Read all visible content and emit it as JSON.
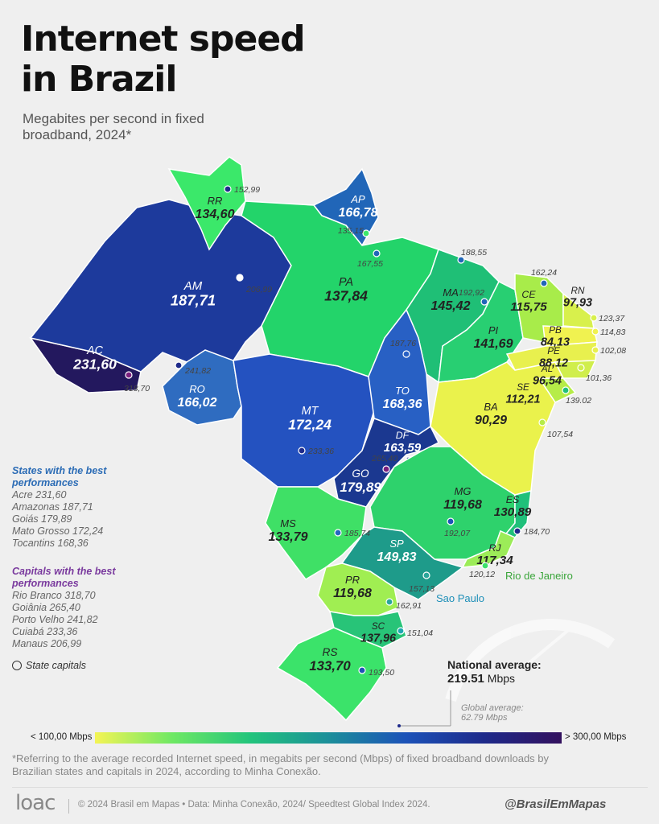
{
  "title_line1": "Internet speed",
  "title_line2": "in Brazil",
  "subtitle": "Megabites per second in fixed broadband, 2024*",
  "states": [
    {
      "abbr": "AC",
      "value": "231,60"
    },
    {
      "abbr": "AM",
      "value": "187,71"
    },
    {
      "abbr": "RR",
      "value": "134,60"
    },
    {
      "abbr": "AP",
      "value": "166,78"
    },
    {
      "abbr": "PA",
      "value": "137,84"
    },
    {
      "abbr": "MA",
      "value": "145,42"
    },
    {
      "abbr": "PI",
      "value": "141,69"
    },
    {
      "abbr": "CE",
      "value": "115,75"
    },
    {
      "abbr": "RN",
      "value": "97,93"
    },
    {
      "abbr": "PB",
      "value": "84,13"
    },
    {
      "abbr": "PE",
      "value": "88,12"
    },
    {
      "abbr": "AL",
      "value": "96,54"
    },
    {
      "abbr": "SE",
      "value": "112,21"
    },
    {
      "abbr": "BA",
      "value": "90,29"
    },
    {
      "abbr": "RO",
      "value": "166,02"
    },
    {
      "abbr": "MT",
      "value": "172,24"
    },
    {
      "abbr": "TO",
      "value": "168,36"
    },
    {
      "abbr": "DF",
      "value": "163,59"
    },
    {
      "abbr": "GO",
      "value": "179,89"
    },
    {
      "abbr": "MS",
      "value": "133,79"
    },
    {
      "abbr": "MG",
      "value": "119,68"
    },
    {
      "abbr": "ES",
      "value": "130,89"
    },
    {
      "abbr": "RJ",
      "value": "117,34"
    },
    {
      "abbr": "SP",
      "value": "149,83"
    },
    {
      "abbr": "PR",
      "value": "119,68"
    },
    {
      "abbr": "SC",
      "value": "137,96"
    },
    {
      "abbr": "RS",
      "value": "133,70"
    }
  ],
  "capitals": [
    {
      "value": "152,99"
    },
    {
      "value": "135,15"
    },
    {
      "value": "167,55"
    },
    {
      "value": "188,55"
    },
    {
      "value": "162,24"
    },
    {
      "value": "192,92"
    },
    {
      "value": "123,37"
    },
    {
      "value": "114,83"
    },
    {
      "value": "102,08"
    },
    {
      "value": "101,36"
    },
    {
      "value": "139.02"
    },
    {
      "value": "107,54"
    },
    {
      "value": "206,99"
    },
    {
      "value": "241,82"
    },
    {
      "value": "318,70"
    },
    {
      "value": "187,76"
    },
    {
      "value": "233,36"
    },
    {
      "value": "265,40"
    },
    {
      "value": "157,13"
    },
    {
      "value": "192,07"
    },
    {
      "value": "184,70"
    },
    {
      "value": "185,74"
    },
    {
      "value": "120,12"
    },
    {
      "value": "162,91"
    },
    {
      "value": "151,04"
    },
    {
      "value": "193,50"
    }
  ],
  "city_labels": {
    "rio": "Rio de Janeiro",
    "sao_paulo": "Sao Paulo"
  },
  "best_states": {
    "heading": "States with the best performances",
    "items": [
      "Acre 231,60",
      "Amazonas 187,71",
      "Goiás 179,89",
      "Mato Grosso 172,24",
      "Tocantins 168,36"
    ]
  },
  "best_capitals": {
    "heading": "Capitals with the best performances",
    "items": [
      "Rio Branco 318,70",
      "Goiânia 265,40",
      "Porto Velho 241,82",
      "Cuiabá 233,36",
      "Manaus 206,99"
    ]
  },
  "capitals_note": "State capitals",
  "national_average": {
    "label": "National average:",
    "value": "219.51",
    "unit": "Mbps"
  },
  "global_average": {
    "label": "Global average:",
    "value": "62.79 Mbps"
  },
  "legend": {
    "low": "< 100,00 Mbps",
    "high": "> 300,00 Mbps"
  },
  "footnote": "*Referring to the average recorded Internet speed, in megabits per second (Mbps) of fixed broadband downloads by Brazilian states and capitals in 2024, according to Minha Conexão.",
  "footer": {
    "logo": "loac",
    "credits": "© 2024 Brasil em Mapas • Data: Minha Conexão, 2024/ Speedtest Global Index 2024.",
    "handle": "@BrasilEmMapas"
  },
  "colors": {
    "AC": "#23185e",
    "AM": "#1d3a9c",
    "RR": "#3be86a",
    "AP": "#2166b8",
    "PA": "#23d46a",
    "MA": "#1fbf76",
    "PI": "#28cf72",
    "CE": "#a8ec4a",
    "RN": "#d8f04c",
    "PB": "#f0f250",
    "PE": "#e8f04e",
    "AL": "#d0ee4c",
    "SE": "#b6ec48",
    "BA": "#eaf24c",
    "RO": "#2f6cc0",
    "MT": "#2452c0",
    "TO": "#2860c4",
    "DF": "#1b3c9a",
    "GO": "#1b3890",
    "MS": "#3fe066",
    "MG": "#2ed26c",
    "ES": "#1fc07a",
    "RJ": "#9cec58",
    "SP": "#1e9b8a",
    "PR": "#a0ee52",
    "SC": "#28c478",
    "RS": "#3be36a"
  }
}
